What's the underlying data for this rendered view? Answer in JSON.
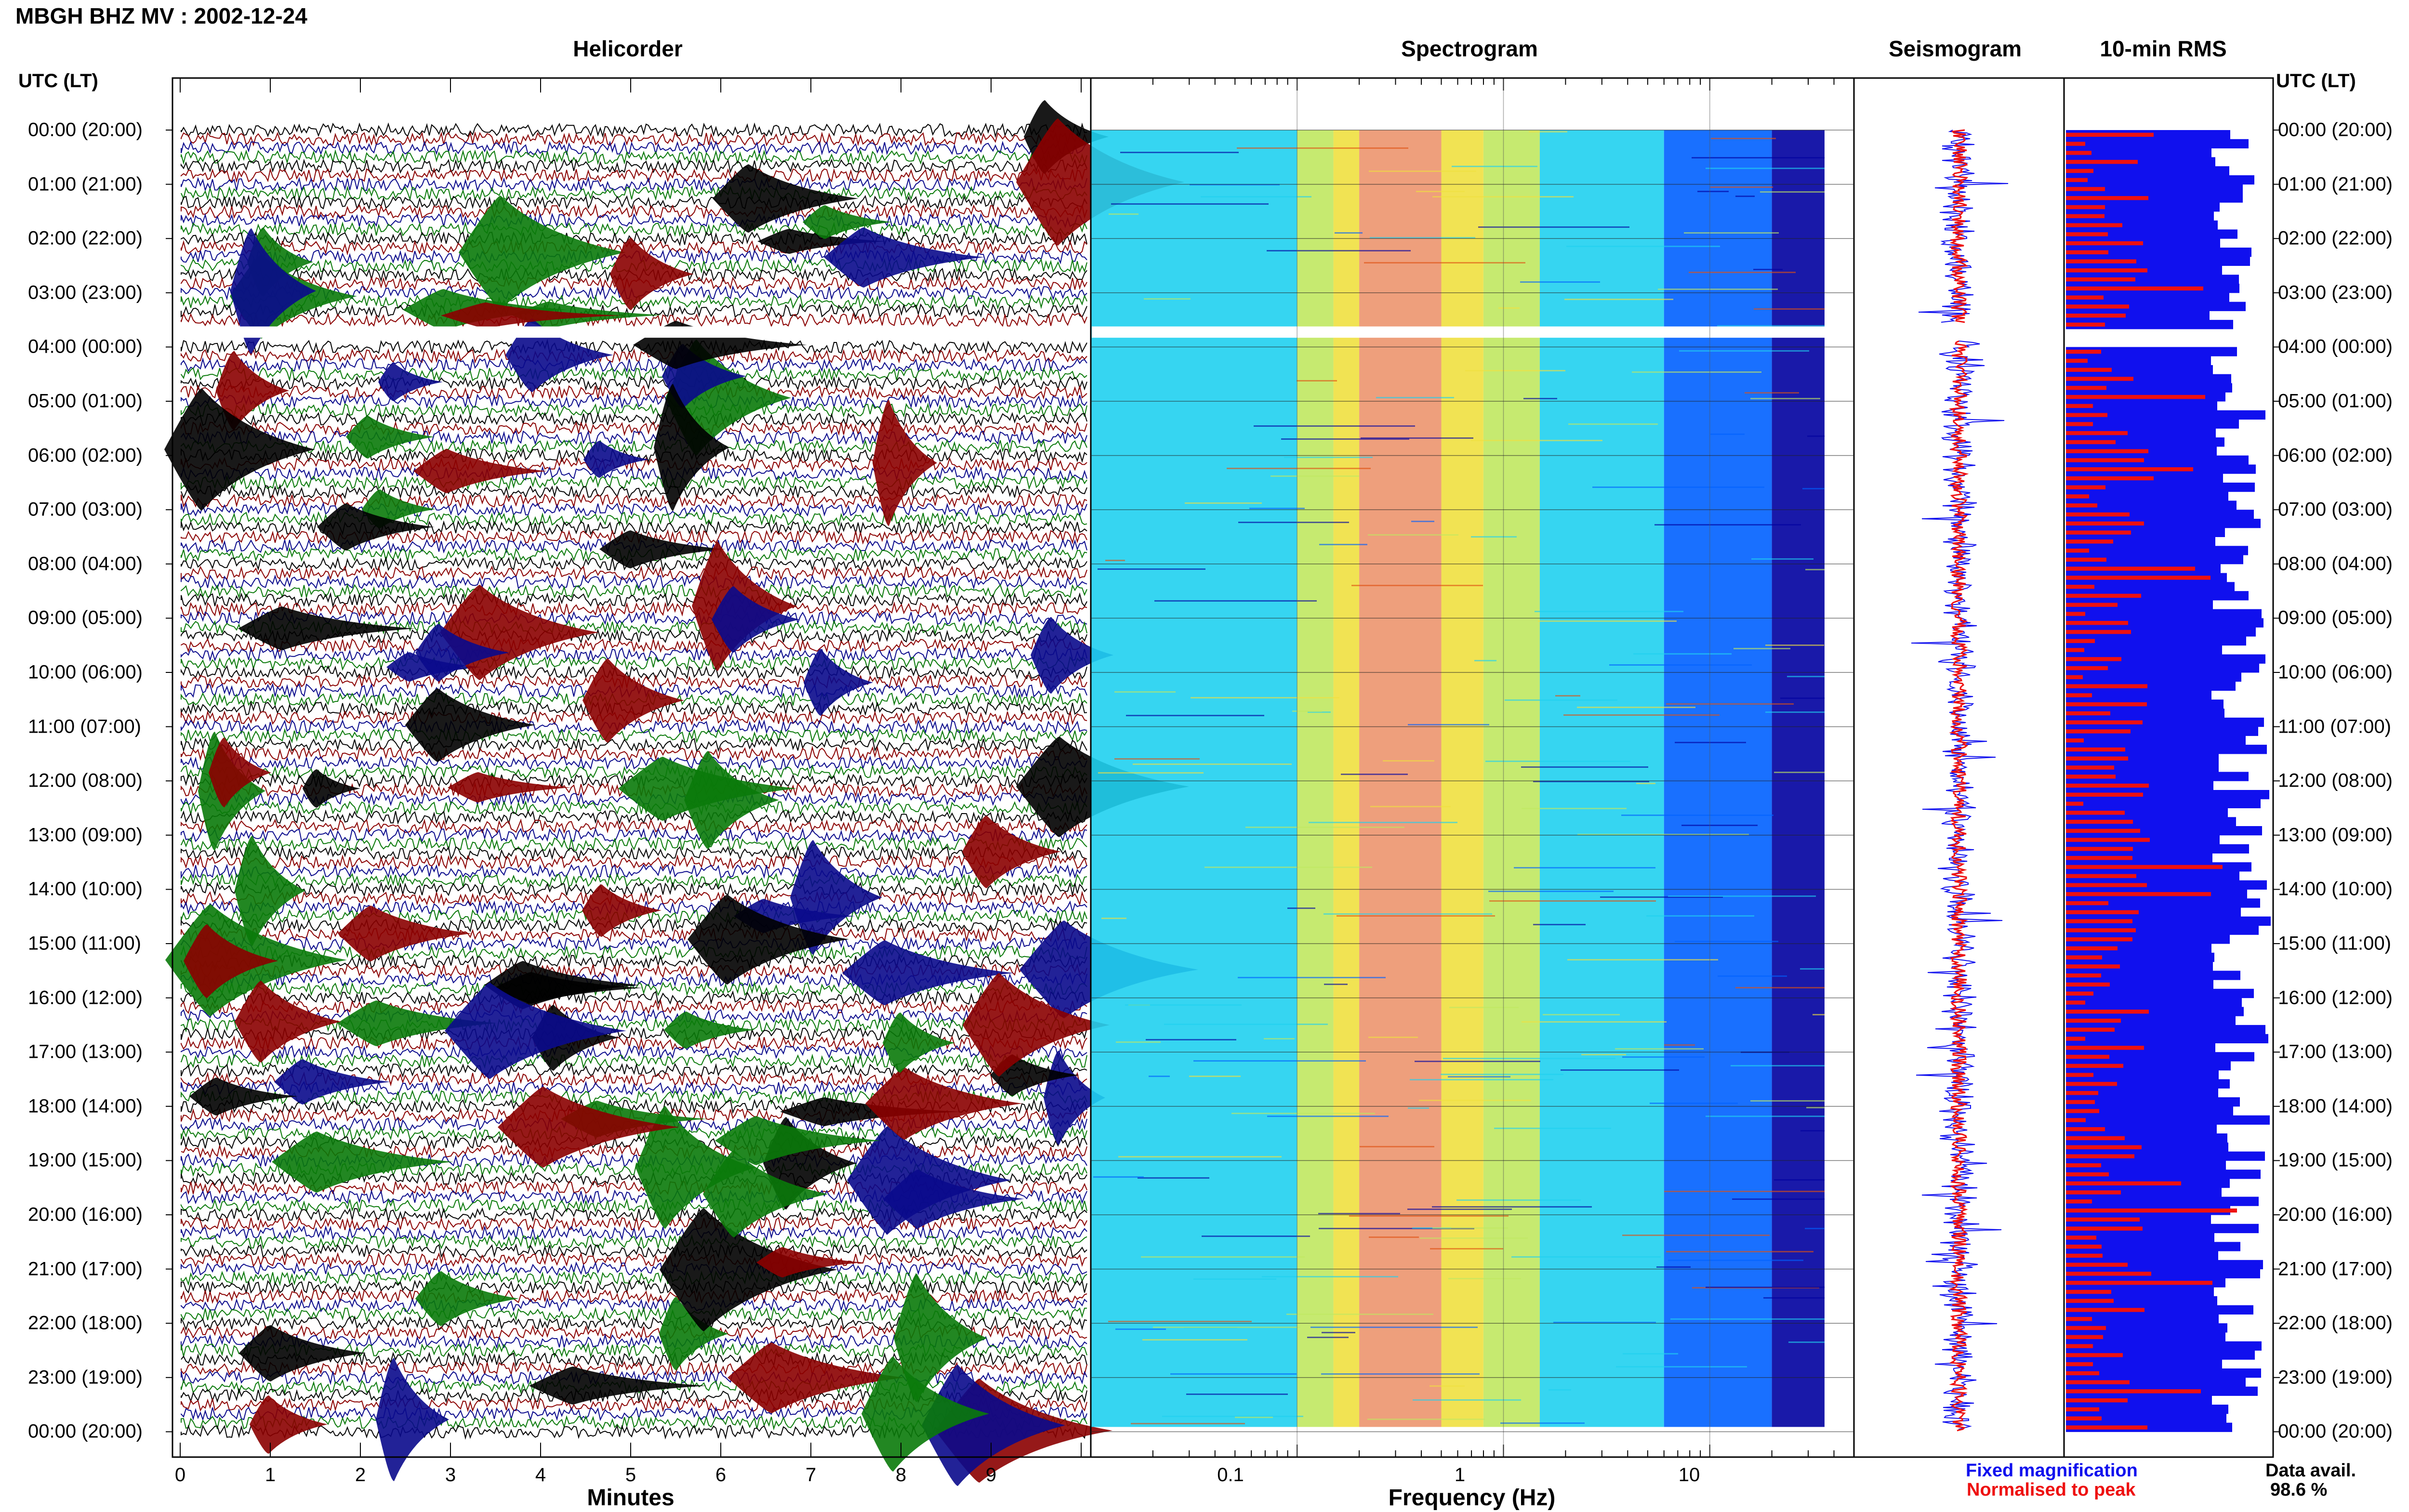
{
  "title": "MBGH BHZ MV : 2002-12-24",
  "utc_header": "UTC (LT)",
  "panels": {
    "helicorder": "Helicorder",
    "spectrogram": "Spectrogram",
    "seismogram": "Seismogram",
    "rms": "10-min RMS"
  },
  "time_labels": [
    "00:00 (20:00)",
    "01:00 (21:00)",
    "02:00 (22:00)",
    "03:00 (23:00)",
    "04:00 (00:00)",
    "05:00 (01:00)",
    "06:00 (02:00)",
    "07:00 (03:00)",
    "08:00 (04:00)",
    "09:00 (05:00)",
    "10:00 (06:00)",
    "11:00 (07:00)",
    "12:00 (08:00)",
    "13:00 (09:00)",
    "14:00 (10:00)",
    "15:00 (11:00)",
    "16:00 (12:00)",
    "17:00 (13:00)",
    "18:00 (14:00)",
    "19:00 (15:00)",
    "20:00 (16:00)",
    "21:00 (17:00)",
    "22:00 (18:00)",
    "23:00 (19:00)",
    "00:00 (20:00)"
  ],
  "legend": {
    "fixed": "Fixed magnification",
    "normalised": "Normalised to peak",
    "fixed_color": "#1010ee",
    "normalised_color": "#ee1010"
  },
  "data_avail": {
    "label": "Data avail.",
    "value": "98.6 %"
  },
  "chart_data": [
    {
      "type": "line",
      "panel": "helicorder",
      "xlabel": "Minutes",
      "x_ticks": [
        "0",
        "1",
        "2",
        "3",
        "4",
        "5",
        "6",
        "7",
        "8",
        "9"
      ],
      "xlim": [
        0,
        10
      ],
      "trace_colors": [
        "#000000",
        "#8b0000",
        "#0a0a8c",
        "#0a7a0a"
      ],
      "data_gap_hours": [
        3.55,
        3.9
      ]
    },
    {
      "type": "heatmap",
      "panel": "spectrogram",
      "xlabel": "Frequency (Hz)",
      "x_ticks": [
        "0.1",
        "1",
        "10"
      ],
      "x_scale": "log",
      "xlim": [
        0.01,
        50
      ],
      "colormap": [
        "#0000a0",
        "#0060ff",
        "#20d0f0",
        "#c0e860",
        "#f0e040",
        "#e05010"
      ],
      "hot_band_hz": [
        0.2,
        0.5
      ],
      "data_gap_hours": [
        3.55,
        3.9
      ]
    },
    {
      "type": "line",
      "panel": "seismogram",
      "series": [
        {
          "name": "Fixed magnification"
        },
        {
          "name": "Normalised to peak"
        }
      ]
    },
    {
      "type": "bar",
      "panel": "10-min RMS",
      "series": [
        {
          "name": "Fixed magnification"
        },
        {
          "name": "Normalised to peak"
        }
      ],
      "data_gap_hours": [
        3.55,
        3.9
      ]
    }
  ]
}
